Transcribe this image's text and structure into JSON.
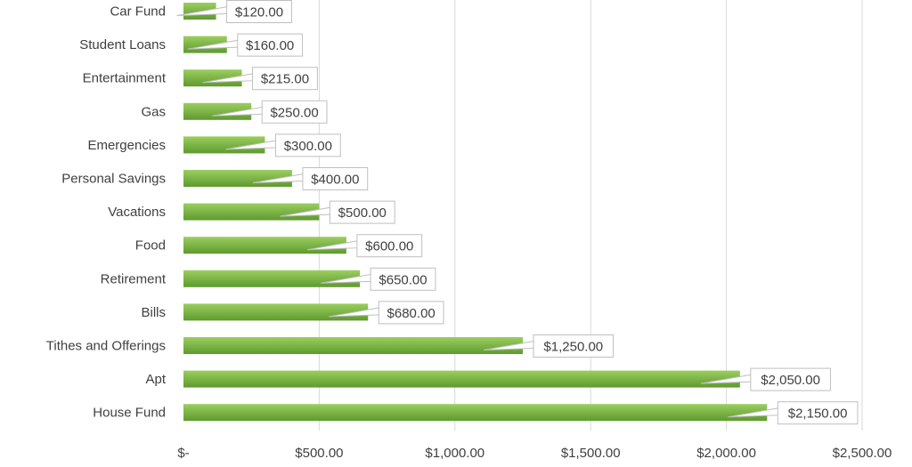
{
  "chart_data": {
    "type": "bar",
    "orientation": "horizontal",
    "categories": [
      "Car Fund",
      "Student Loans",
      "Entertainment",
      "Gas",
      "Emergencies",
      "Personal Savings",
      "Vacations",
      "Food",
      "Retirement",
      "Bills",
      "Tithes and Offerings",
      "Apt",
      "House Fund"
    ],
    "values": [
      120,
      160,
      215,
      250,
      300,
      400,
      500,
      600,
      650,
      680,
      1250,
      2050,
      2150
    ],
    "value_labels": [
      "$120.00",
      "$160.00",
      "$215.00",
      "$250.00",
      "$300.00",
      "$400.00",
      "$500.00",
      "$600.00",
      "$650.00",
      "$680.00",
      "$1,250.00",
      "$2,050.00",
      "$2,150.00"
    ],
    "x_ticks": [
      0,
      500,
      1000,
      1500,
      2000,
      2500
    ],
    "x_tick_labels": [
      "$-",
      "$500.00",
      "$1,000.00",
      "$1,500.00",
      "$2,000.00",
      "$2,500.00"
    ],
    "xlim": [
      0,
      2500
    ],
    "grid": "vertical",
    "data_labels": "callout",
    "colors": {
      "bar_top": "#9bce5f",
      "bar_bottom": "#5e9a2e",
      "grid": "#d9d9d9",
      "text": "#404040",
      "label_border": "#bfbfbf"
    }
  }
}
